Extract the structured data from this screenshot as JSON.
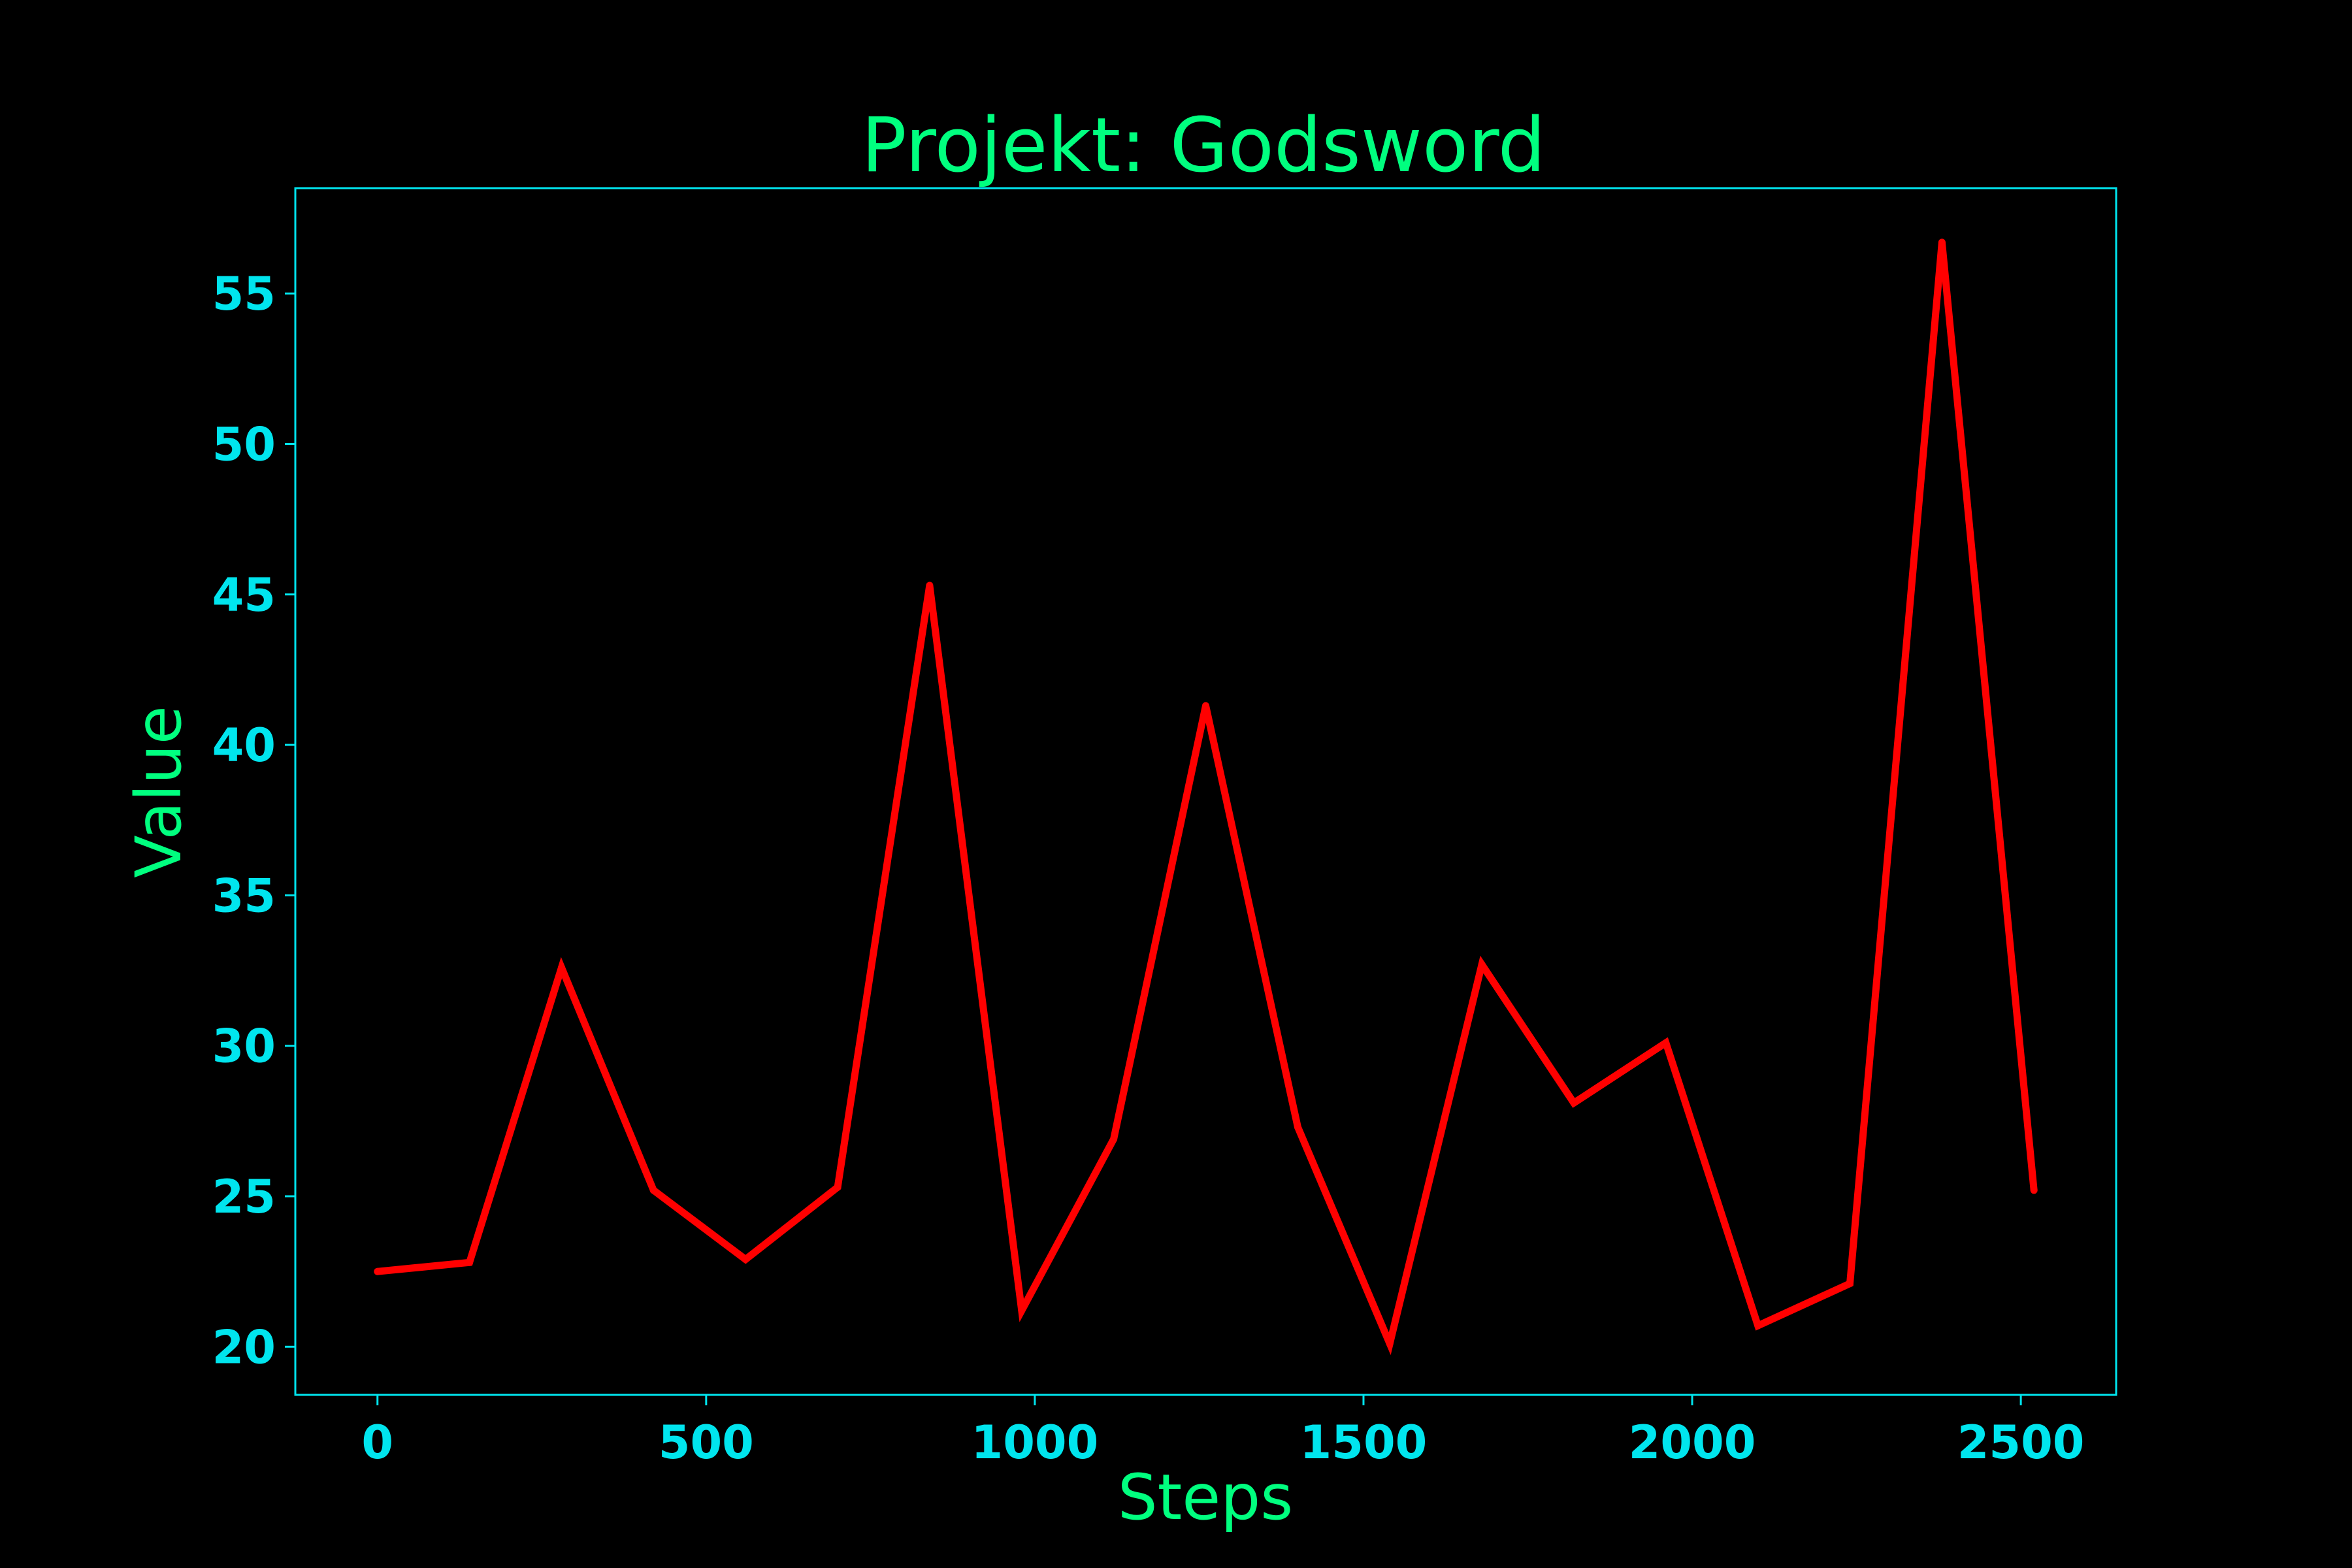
{
  "colors": {
    "background": "#000000",
    "title": "#00ff7f",
    "axis_label": "#00ff7f",
    "ticks": "#00e5ee",
    "frame": "#00e5ee",
    "line": "#ff0000"
  },
  "chart_data": {
    "type": "line",
    "title": "Projekt: Godsword",
    "xlabel": "Steps",
    "ylabel": "Value",
    "x": [
      0,
      140,
      280,
      420,
      560,
      700,
      840,
      980,
      1120,
      1260,
      1400,
      1540,
      1680,
      1820,
      1960,
      2100,
      2240,
      2380,
      2520
    ],
    "series": [
      {
        "values": [
          22.5,
          22.8,
          32.6,
          25.2,
          22.9,
          25.3,
          45.3,
          21.2,
          26.9,
          41.3,
          27.3,
          20.1,
          32.7,
          28.1,
          30.1,
          20.7,
          22.1,
          56.7,
          25.2
        ]
      }
    ],
    "xlim": [
      -125,
      2645
    ],
    "ylim": [
      18.4,
      58.5
    ],
    "xticks": [
      0,
      500,
      1000,
      1500,
      2000,
      2500
    ],
    "xtick_labels": [
      "0",
      "500",
      "1000",
      "1500",
      "2000",
      "2500"
    ],
    "yticks": [
      20,
      25,
      30,
      35,
      40,
      45,
      50,
      55
    ],
    "ytick_labels": [
      "20",
      "25",
      "30",
      "35",
      "40",
      "45",
      "50",
      "55"
    ],
    "grid": false,
    "legend": "none"
  }
}
